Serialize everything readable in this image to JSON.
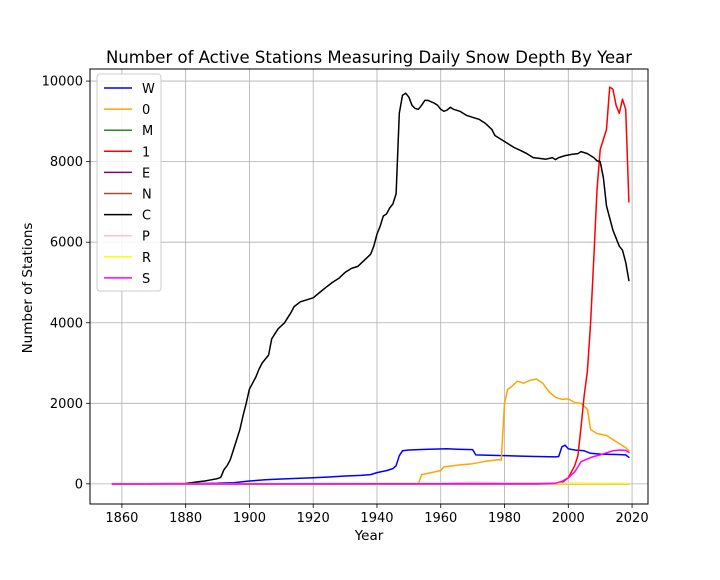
{
  "chart_data": {
    "type": "line",
    "title": "Number of Active Stations Measuring Daily Snow Depth By Year",
    "xlabel": "Year",
    "ylabel": "Number of Stations",
    "xlim": [
      1850,
      2025
    ],
    "ylim": [
      -500,
      10300
    ],
    "xticks": [
      1860,
      1880,
      1900,
      1920,
      1940,
      1960,
      1980,
      2000,
      2020
    ],
    "yticks": [
      0,
      2000,
      4000,
      6000,
      8000,
      10000
    ],
    "grid": true,
    "legend_position": "top-left",
    "series": [
      {
        "name": "W",
        "color": "#0000ff",
        "points": [
          [
            1857,
            0
          ],
          [
            1880,
            5
          ],
          [
            1890,
            15
          ],
          [
            1895,
            30
          ],
          [
            1900,
            70
          ],
          [
            1905,
            100
          ],
          [
            1910,
            120
          ],
          [
            1915,
            135
          ],
          [
            1920,
            150
          ],
          [
            1925,
            170
          ],
          [
            1930,
            195
          ],
          [
            1935,
            210
          ],
          [
            1938,
            230
          ],
          [
            1940,
            280
          ],
          [
            1943,
            330
          ],
          [
            1945,
            380
          ],
          [
            1946,
            450
          ],
          [
            1947,
            700
          ],
          [
            1948,
            820
          ],
          [
            1950,
            840
          ],
          [
            1955,
            855
          ],
          [
            1962,
            870
          ],
          [
            1965,
            860
          ],
          [
            1970,
            850
          ],
          [
            1971,
            720
          ],
          [
            1975,
            710
          ],
          [
            1985,
            690
          ],
          [
            1990,
            680
          ],
          [
            1996,
            670
          ],
          [
            1997,
            680
          ],
          [
            1998,
            920
          ],
          [
            1999,
            960
          ],
          [
            2000,
            870
          ],
          [
            2002,
            840
          ],
          [
            2005,
            820
          ],
          [
            2007,
            760
          ],
          [
            2010,
            740
          ],
          [
            2015,
            730
          ],
          [
            2018,
            720
          ],
          [
            2019,
            660
          ]
        ]
      },
      {
        "name": "0",
        "color": "#ffa500",
        "points": [
          [
            1857,
            0
          ],
          [
            1953,
            0
          ],
          [
            1954,
            230
          ],
          [
            1957,
            280
          ],
          [
            1960,
            330
          ],
          [
            1961,
            420
          ],
          [
            1965,
            460
          ],
          [
            1970,
            500
          ],
          [
            1974,
            560
          ],
          [
            1978,
            600
          ],
          [
            1979,
            590
          ],
          [
            1980,
            2000
          ],
          [
            1981,
            2350
          ],
          [
            1982,
            2400
          ],
          [
            1984,
            2550
          ],
          [
            1986,
            2500
          ],
          [
            1988,
            2570
          ],
          [
            1990,
            2600
          ],
          [
            1992,
            2500
          ],
          [
            1994,
            2280
          ],
          [
            1996,
            2150
          ],
          [
            1998,
            2100
          ],
          [
            2000,
            2110
          ],
          [
            2002,
            2020
          ],
          [
            2004,
            2000
          ],
          [
            2006,
            1850
          ],
          [
            2007,
            1350
          ],
          [
            2009,
            1250
          ],
          [
            2012,
            1200
          ],
          [
            2015,
            1050
          ],
          [
            2018,
            900
          ],
          [
            2019,
            820
          ]
        ]
      },
      {
        "name": "M",
        "color": "#228b22",
        "points": [
          [
            1857,
            0
          ],
          [
            2019,
            0
          ]
        ]
      },
      {
        "name": "1",
        "color": "#ff0000",
        "points": [
          [
            1857,
            0
          ],
          [
            1995,
            0
          ],
          [
            1998,
            30
          ],
          [
            2000,
            150
          ],
          [
            2002,
            450
          ],
          [
            2003,
            700
          ],
          [
            2004,
            1400
          ],
          [
            2005,
            2200
          ],
          [
            2006,
            2800
          ],
          [
            2007,
            4000
          ],
          [
            2008,
            5600
          ],
          [
            2009,
            7300
          ],
          [
            2010,
            8300
          ],
          [
            2012,
            8800
          ],
          [
            2013,
            9850
          ],
          [
            2014,
            9800
          ],
          [
            2015,
            9400
          ],
          [
            2016,
            9200
          ],
          [
            2017,
            9550
          ],
          [
            2018,
            9300
          ],
          [
            2019,
            7000
          ]
        ]
      },
      {
        "name": "E",
        "color": "#800080",
        "points": [
          [
            1857,
            0
          ],
          [
            2019,
            0
          ]
        ]
      },
      {
        "name": "N",
        "color": "#a0522d",
        "points": [
          [
            1857,
            0
          ],
          [
            2019,
            0
          ]
        ]
      },
      {
        "name": "C",
        "color": "#000000",
        "points": [
          [
            1857,
            0
          ],
          [
            1880,
            10
          ],
          [
            1884,
            50
          ],
          [
            1886,
            70
          ],
          [
            1888,
            100
          ],
          [
            1890,
            130
          ],
          [
            1891,
            160
          ],
          [
            1892,
            350
          ],
          [
            1893,
            450
          ],
          [
            1894,
            600
          ],
          [
            1895,
            850
          ],
          [
            1896,
            1100
          ],
          [
            1897,
            1350
          ],
          [
            1898,
            1700
          ],
          [
            1899,
            2000
          ],
          [
            1900,
            2350
          ],
          [
            1902,
            2650
          ],
          [
            1903,
            2850
          ],
          [
            1904,
            3000
          ],
          [
            1906,
            3200
          ],
          [
            1907,
            3600
          ],
          [
            1909,
            3850
          ],
          [
            1911,
            4000
          ],
          [
            1913,
            4250
          ],
          [
            1914,
            4400
          ],
          [
            1916,
            4520
          ],
          [
            1918,
            4570
          ],
          [
            1920,
            4620
          ],
          [
            1922,
            4750
          ],
          [
            1924,
            4880
          ],
          [
            1926,
            5000
          ],
          [
            1928,
            5100
          ],
          [
            1930,
            5250
          ],
          [
            1932,
            5350
          ],
          [
            1934,
            5400
          ],
          [
            1936,
            5550
          ],
          [
            1938,
            5700
          ],
          [
            1939,
            5900
          ],
          [
            1940,
            6200
          ],
          [
            1941,
            6400
          ],
          [
            1942,
            6650
          ],
          [
            1943,
            6700
          ],
          [
            1944,
            6850
          ],
          [
            1945,
            6950
          ],
          [
            1946,
            7200
          ],
          [
            1947,
            9200
          ],
          [
            1948,
            9650
          ],
          [
            1949,
            9700
          ],
          [
            1950,
            9600
          ],
          [
            1951,
            9400
          ],
          [
            1952,
            9320
          ],
          [
            1953,
            9300
          ],
          [
            1954,
            9400
          ],
          [
            1955,
            9520
          ],
          [
            1956,
            9520
          ],
          [
            1958,
            9450
          ],
          [
            1959,
            9400
          ],
          [
            1960,
            9300
          ],
          [
            1961,
            9250
          ],
          [
            1962,
            9280
          ],
          [
            1963,
            9350
          ],
          [
            1964,
            9300
          ],
          [
            1966,
            9250
          ],
          [
            1968,
            9150
          ],
          [
            1970,
            9100
          ],
          [
            1972,
            9050
          ],
          [
            1974,
            8950
          ],
          [
            1976,
            8800
          ],
          [
            1977,
            8650
          ],
          [
            1979,
            8550
          ],
          [
            1981,
            8450
          ],
          [
            1983,
            8350
          ],
          [
            1985,
            8280
          ],
          [
            1987,
            8200
          ],
          [
            1989,
            8100
          ],
          [
            1991,
            8080
          ],
          [
            1993,
            8060
          ],
          [
            1995,
            8100
          ],
          [
            1996,
            8050
          ],
          [
            1997,
            8100
          ],
          [
            1999,
            8150
          ],
          [
            2001,
            8180
          ],
          [
            2003,
            8200
          ],
          [
            2004,
            8250
          ],
          [
            2006,
            8200
          ],
          [
            2008,
            8100
          ],
          [
            2009,
            8020
          ],
          [
            2010,
            8000
          ],
          [
            2011,
            7600
          ],
          [
            2012,
            6900
          ],
          [
            2013,
            6600
          ],
          [
            2014,
            6300
          ],
          [
            2015,
            6100
          ],
          [
            2016,
            5900
          ],
          [
            2017,
            5800
          ],
          [
            2018,
            5500
          ],
          [
            2019,
            5050
          ]
        ]
      },
      {
        "name": "P",
        "color": "#ffc0cb",
        "points": [
          [
            1857,
            0
          ],
          [
            1960,
            10
          ],
          [
            1965,
            30
          ],
          [
            1970,
            40
          ],
          [
            1975,
            35
          ],
          [
            1980,
            20
          ],
          [
            1990,
            20
          ],
          [
            2000,
            15
          ],
          [
            2019,
            10
          ]
        ]
      },
      {
        "name": "R",
        "color": "#ffff00",
        "points": [
          [
            1857,
            0
          ],
          [
            2019,
            0
          ]
        ]
      },
      {
        "name": "S",
        "color": "#ff00ff",
        "points": [
          [
            1857,
            0
          ],
          [
            1990,
            5
          ],
          [
            1996,
            15
          ],
          [
            1998,
            60
          ],
          [
            2000,
            150
          ],
          [
            2002,
            300
          ],
          [
            2003,
            420
          ],
          [
            2004,
            550
          ],
          [
            2006,
            620
          ],
          [
            2008,
            680
          ],
          [
            2010,
            720
          ],
          [
            2012,
            770
          ],
          [
            2014,
            820
          ],
          [
            2016,
            840
          ],
          [
            2018,
            830
          ],
          [
            2019,
            780
          ]
        ]
      }
    ]
  }
}
